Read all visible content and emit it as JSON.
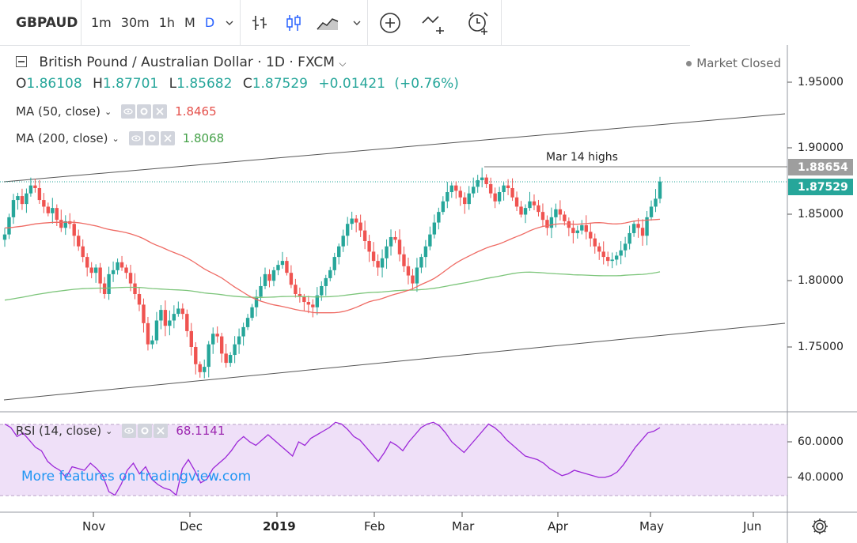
{
  "toolbar": {
    "symbol": "GBPAUD",
    "timeframes": [
      "1m",
      "30m",
      "1h",
      "M",
      "D"
    ],
    "active_timeframe": "D",
    "icons": [
      "chevron-down-icon",
      "bar-style-icon",
      "candle-style-icon",
      "area-style-icon",
      "chevron-down-icon",
      "add-indicator-icon",
      "compare-icon",
      "alert-icon"
    ]
  },
  "header": {
    "title": "British Pound / Australian Dollar · 1D · FXCM",
    "open_label": "O",
    "open": "1.86108",
    "high_label": "H",
    "high": "1.87701",
    "low_label": "L",
    "low": "1.85682",
    "close_label": "C",
    "close": "1.87529",
    "change": "+0.01421",
    "change_pct": "(+0.76%)",
    "market_status": "Market Closed"
  },
  "indicators": {
    "ma50": {
      "label": "MA (50, close)",
      "value": "1.8465",
      "color": "#e5504b"
    },
    "ma200": {
      "label": "MA (200, close)",
      "value": "1.8068",
      "color": "#43a047"
    },
    "rsi": {
      "label": "RSI (14, close)",
      "value": "68.1141",
      "color": "#9c27b0"
    }
  },
  "price_axis": {
    "labels": [
      "1.95000",
      "1.90000",
      "1.85000",
      "1.80000",
      "1.75000"
    ],
    "current_price": "1.87529",
    "current_color": "#26a69a",
    "level_price": "1.88654",
    "level_color": "#9e9e9e"
  },
  "rsi_axis": {
    "labels": [
      "60.0000",
      "40.0000"
    ]
  },
  "annotation": {
    "text": "Mar 14 highs"
  },
  "watermark": "More features on tradingview.com",
  "time_axis": {
    "labels": [
      "Nov",
      "Dec",
      "2019",
      "Feb",
      "Mar",
      "Apr",
      "May",
      "Jun"
    ]
  },
  "chart_data": {
    "type": "candlestick",
    "title": "British Pound / Australian Dollar · 1D · FXCM",
    "y_range": [
      1.71,
      1.97
    ],
    "ma50_value": 1.8465,
    "ma200_value": 1.8068,
    "rsi_value": 68.1141,
    "x_start_index": 0,
    "close_path": [
      1.835,
      1.848,
      1.861,
      1.864,
      1.858,
      1.866,
      1.872,
      1.87,
      1.861,
      1.856,
      1.851,
      1.855,
      1.846,
      1.84,
      1.845,
      1.843,
      1.834,
      1.826,
      1.818,
      1.81,
      1.806,
      1.81,
      1.798,
      1.79,
      1.805,
      1.808,
      1.814,
      1.81,
      1.806,
      1.798,
      1.79,
      1.782,
      1.768,
      1.752,
      1.755,
      1.77,
      1.778,
      1.766,
      1.77,
      1.775,
      1.779,
      1.775,
      1.762,
      1.75,
      1.737,
      1.731,
      1.735,
      1.752,
      1.76,
      1.758,
      1.745,
      1.738,
      1.744,
      1.752,
      1.758,
      1.765,
      1.772,
      1.78,
      1.788,
      1.796,
      1.805,
      1.8,
      1.808,
      1.812,
      1.815,
      1.806,
      1.797,
      1.79,
      1.788,
      1.784,
      1.782,
      1.78,
      1.789,
      1.796,
      1.802,
      1.808,
      1.818,
      1.826,
      1.834,
      1.843,
      1.847,
      1.844,
      1.838,
      1.83,
      1.822,
      1.815,
      1.81,
      1.817,
      1.826,
      1.833,
      1.831,
      1.82,
      1.811,
      1.804,
      1.798,
      1.81,
      1.818,
      1.826,
      1.835,
      1.844,
      1.852,
      1.86,
      1.867,
      1.872,
      1.868,
      1.863,
      1.858,
      1.866,
      1.871,
      1.876,
      1.878,
      1.873,
      1.866,
      1.86,
      1.867,
      1.872,
      1.87,
      1.863,
      1.856,
      1.85,
      1.855,
      1.86,
      1.857,
      1.852,
      1.846,
      1.84,
      1.848,
      1.854,
      1.85,
      1.845,
      1.84,
      1.836,
      1.838,
      1.842,
      1.837,
      1.832,
      1.826,
      1.822,
      1.818,
      1.815,
      1.816,
      1.819,
      1.823,
      1.828,
      1.836,
      1.843,
      1.84,
      1.834,
      1.848,
      1.856,
      1.862,
      1.875
    ],
    "rsi_path": [
      70,
      68,
      63,
      65,
      61,
      57,
      55,
      49,
      46,
      44,
      40,
      46,
      45,
      44,
      48,
      45,
      41,
      32,
      30,
      36,
      44,
      48,
      42,
      46,
      39,
      36,
      34,
      33,
      30,
      45,
      50,
      44,
      37,
      39,
      45,
      48,
      51,
      55,
      60,
      63,
      60,
      58,
      61,
      64,
      61,
      58,
      55,
      52,
      60,
      58,
      62,
      64,
      66,
      68,
      71,
      70,
      67,
      63,
      61,
      57,
      53,
      49,
      54,
      60,
      58,
      55,
      60,
      64,
      68,
      70,
      71,
      69,
      65,
      60,
      57,
      54,
      58,
      62,
      66,
      70,
      68,
      65,
      61,
      58,
      55,
      52,
      51,
      50,
      48,
      45,
      43,
      41,
      42,
      44,
      43,
      42,
      41,
      40,
      40,
      41,
      43,
      47,
      52,
      57,
      61,
      65,
      66,
      68
    ]
  }
}
